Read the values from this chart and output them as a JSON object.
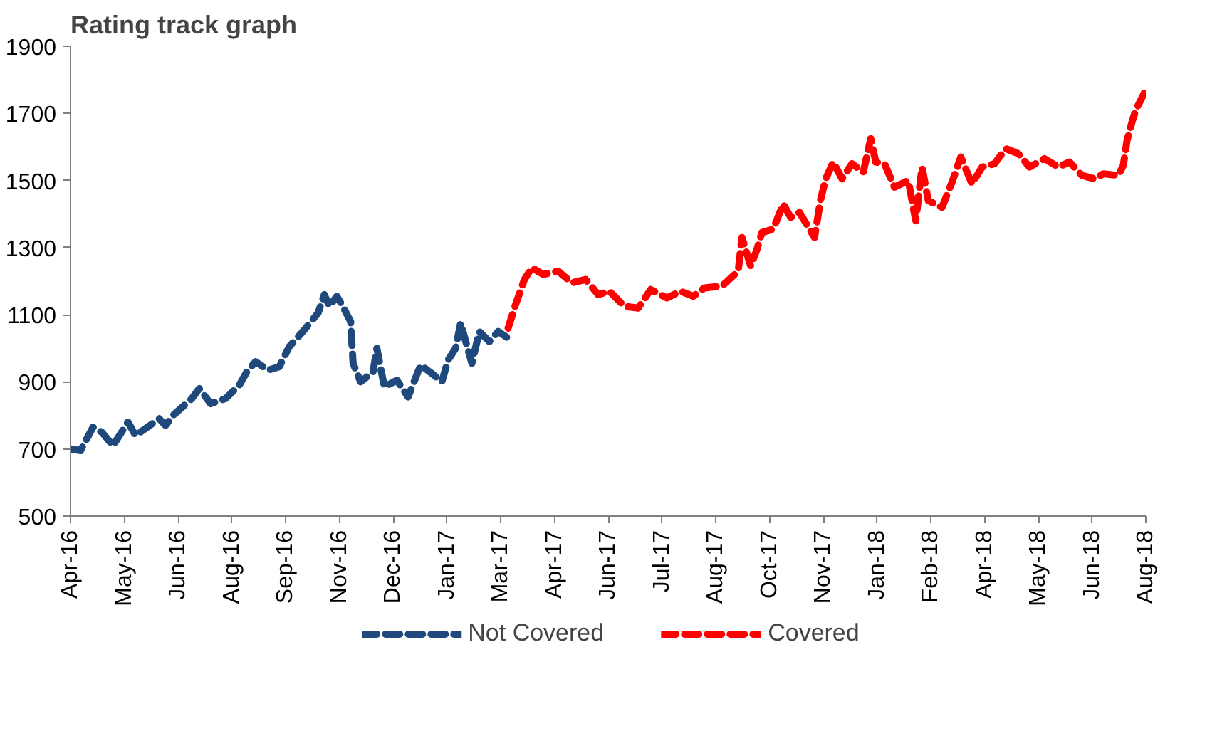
{
  "chart_data": {
    "type": "line",
    "title": "Rating track graph",
    "xlim": [
      "2016-04-01",
      "2018-08-09"
    ],
    "ylim": [
      500,
      1900
    ],
    "yticks": [
      500,
      700,
      900,
      1100,
      1300,
      1500,
      1700,
      1900
    ],
    "xticks": [
      {
        "value": "2016-04-01",
        "label": "Apr-16"
      },
      {
        "value": "2016-05-14",
        "label": "May-16"
      },
      {
        "value": "2016-06-26",
        "label": "Jun-16"
      },
      {
        "value": "2016-08-08",
        "label": "Aug-16"
      },
      {
        "value": "2016-09-20",
        "label": "Sep-16"
      },
      {
        "value": "2016-11-02",
        "label": "Nov-16"
      },
      {
        "value": "2016-12-15",
        "label": "Dec-16"
      },
      {
        "value": "2017-01-27",
        "label": "Jan-17"
      },
      {
        "value": "2017-03-11",
        "label": "Mar-17"
      },
      {
        "value": "2017-04-23",
        "label": "Apr-17"
      },
      {
        "value": "2017-06-05",
        "label": "Jun-17"
      },
      {
        "value": "2017-07-18",
        "label": "Jul-17"
      },
      {
        "value": "2017-08-30",
        "label": "Aug-17"
      },
      {
        "value": "2017-10-12",
        "label": "Oct-17"
      },
      {
        "value": "2017-11-24",
        "label": "Nov-17"
      },
      {
        "value": "2018-01-06",
        "label": "Jan-18"
      },
      {
        "value": "2018-02-18",
        "label": "Feb-18"
      },
      {
        "value": "2018-04-02",
        "label": "Apr-18"
      },
      {
        "value": "2018-05-15",
        "label": "May-18"
      },
      {
        "value": "2018-06-27",
        "label": "Jun-18"
      },
      {
        "value": "2018-08-09",
        "label": "Aug-18"
      }
    ],
    "grid": false,
    "legend": "bottom",
    "line_style": "dashed",
    "marker": "none",
    "series": [
      {
        "name": "Not Covered",
        "color": "#1f497d",
        "x": [
          "2016-04-01",
          "2016-04-09",
          "2016-04-19",
          "2016-04-26",
          "2016-05-05",
          "2016-05-17",
          "2016-05-23",
          "2016-06-11",
          "2016-06-16",
          "2016-06-22",
          "2016-07-07",
          "2016-07-13",
          "2016-07-22",
          "2016-08-03",
          "2016-08-14",
          "2016-08-20",
          "2016-08-27",
          "2016-09-06",
          "2016-09-15",
          "2016-09-23",
          "2016-10-05",
          "2016-10-16",
          "2016-10-21",
          "2016-10-25",
          "2016-10-31",
          "2016-11-04",
          "2016-11-11",
          "2016-11-13",
          "2016-11-19",
          "2016-11-29",
          "2016-12-02",
          "2016-12-08",
          "2016-12-18",
          "2016-12-27",
          "2017-01-06",
          "2017-01-15",
          "2017-01-23",
          "2017-01-28",
          "2017-02-03",
          "2017-02-07",
          "2017-02-16",
          "2017-02-22",
          "2017-03-02",
          "2017-03-09",
          "2017-03-17"
        ],
        "values": [
          700,
          695,
          765,
          750,
          710,
          780,
          740,
          790,
          770,
          800,
          850,
          880,
          835,
          850,
          890,
          930,
          960,
          935,
          945,
          1005,
          1055,
          1105,
          1160,
          1125,
          1155,
          1130,
          1080,
          955,
          900,
          930,
          1000,
          885,
          905,
          855,
          950,
          925,
          900,
          965,
          1000,
          1075,
          955,
          1050,
          1020,
          1050,
          1030
        ]
      },
      {
        "name": "Covered",
        "color": "#ff0000",
        "x": [
          "2017-03-17",
          "2017-03-22",
          "2017-03-30",
          "2017-04-05",
          "2017-04-14",
          "2017-04-26",
          "2017-05-07",
          "2017-05-18",
          "2017-05-28",
          "2017-06-06",
          "2017-06-18",
          "2017-06-29",
          "2017-07-09",
          "2017-07-22",
          "2017-08-02",
          "2017-08-12",
          "2017-08-21",
          "2017-09-04",
          "2017-09-17",
          "2017-09-20",
          "2017-09-27",
          "2017-10-02",
          "2017-10-06",
          "2017-10-15",
          "2017-10-23",
          "2017-10-29",
          "2017-11-05",
          "2017-11-17",
          "2017-11-22",
          "2017-11-26",
          "2017-12-02",
          "2017-12-09",
          "2017-12-17",
          "2017-12-26",
          "2018-01-01",
          "2018-01-05",
          "2018-01-12",
          "2018-01-20",
          "2018-01-31",
          "2018-02-06",
          "2018-02-11",
          "2018-02-16",
          "2018-02-27",
          "2018-03-07",
          "2018-03-14",
          "2018-03-23",
          "2018-03-31",
          "2018-04-10",
          "2018-04-19",
          "2018-04-29",
          "2018-05-08",
          "2018-05-20",
          "2018-05-31",
          "2018-06-09",
          "2018-06-19",
          "2018-06-29",
          "2018-07-06",
          "2018-07-18",
          "2018-07-22",
          "2018-07-25",
          "2018-07-29",
          "2018-08-01",
          "2018-08-09"
        ],
        "values": [
          1060,
          1120,
          1205,
          1240,
          1220,
          1230,
          1195,
          1205,
          1160,
          1170,
          1125,
          1120,
          1175,
          1150,
          1170,
          1155,
          1180,
          1185,
          1230,
          1330,
          1245,
          1295,
          1345,
          1355,
          1430,
          1390,
          1405,
          1330,
          1445,
          1505,
          1555,
          1505,
          1550,
          1525,
          1625,
          1555,
          1550,
          1480,
          1500,
          1380,
          1540,
          1440,
          1420,
          1495,
          1570,
          1490,
          1540,
          1550,
          1595,
          1580,
          1540,
          1565,
          1540,
          1555,
          1515,
          1505,
          1520,
          1515,
          1545,
          1620,
          1675,
          1710,
          1770
        ]
      }
    ]
  }
}
